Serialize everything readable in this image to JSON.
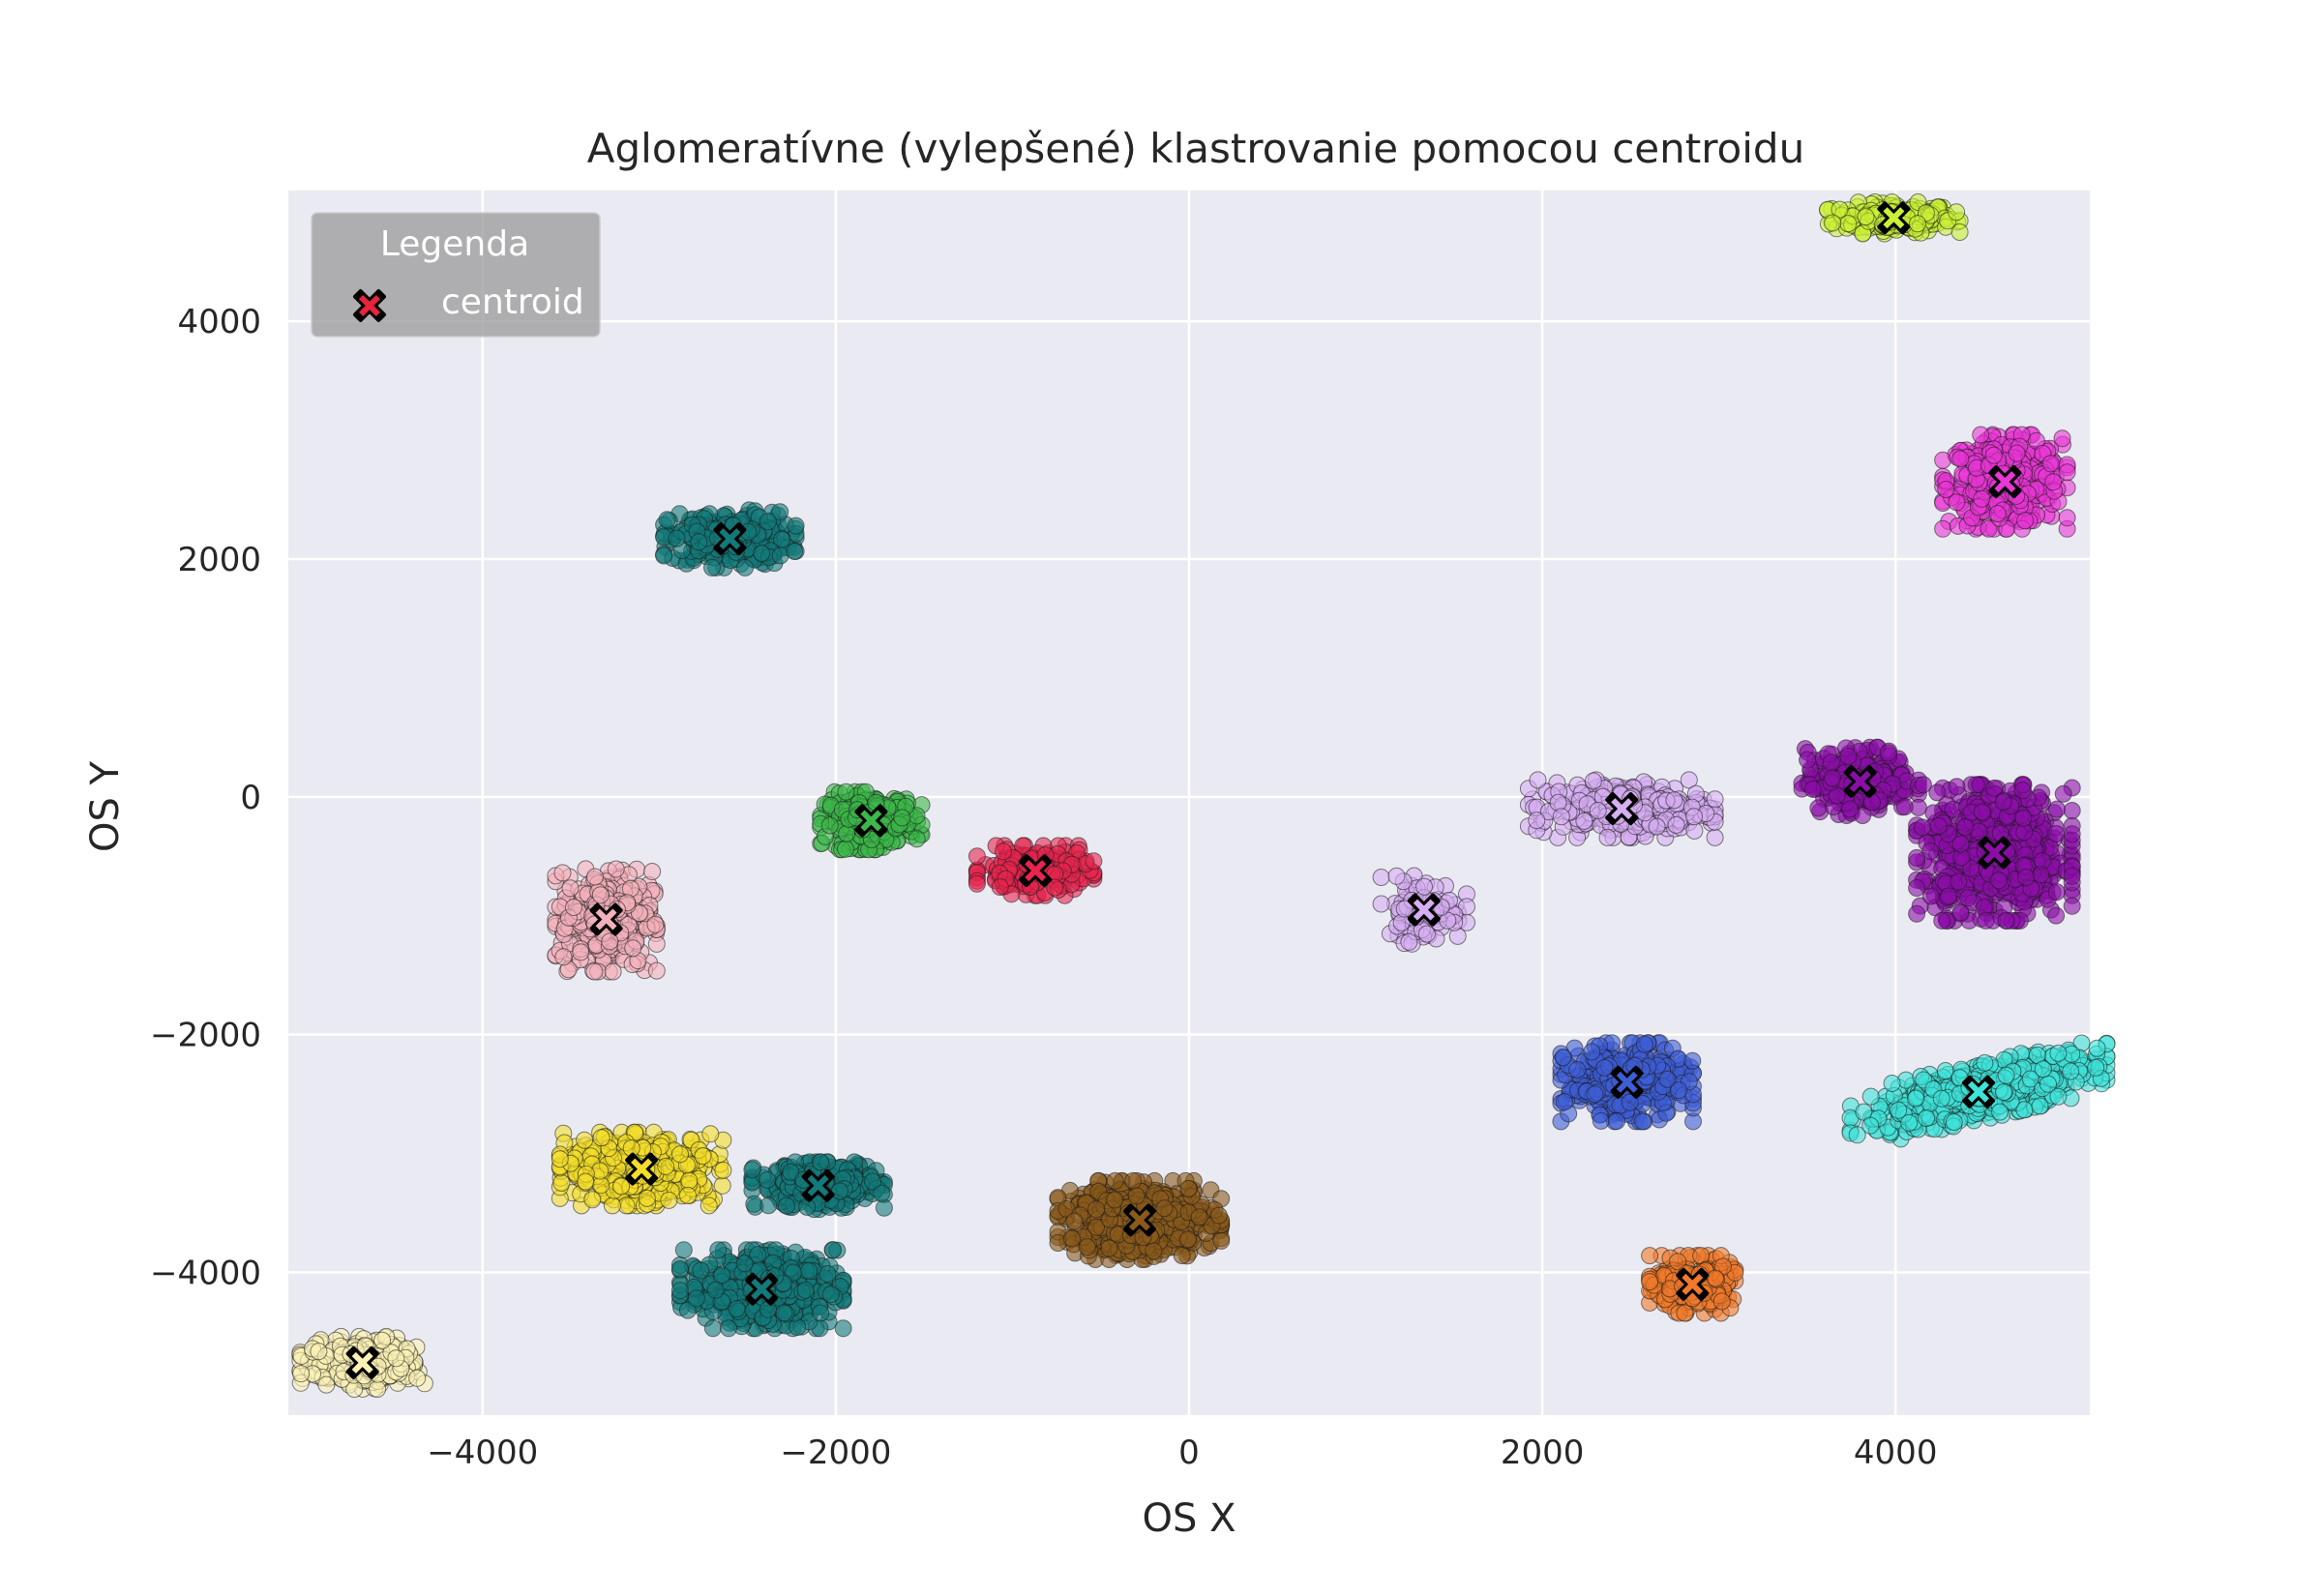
{
  "chart_data": {
    "type": "scatter",
    "title": "Aglomeratívne (vylepšené) klastrovanie pomocou centroidu",
    "xlabel": "OS X",
    "ylabel": "OS Y",
    "xlim": [
      -5100,
      5100
    ],
    "ylim": [
      -5200,
      5100
    ],
    "xticks": [
      -4000,
      -2000,
      0,
      2000,
      4000
    ],
    "yticks": [
      4000,
      2000,
      0,
      -2000,
      -4000
    ],
    "xtick_labels": [
      "−4000",
      "−2000",
      "0",
      "2000",
      "4000"
    ],
    "ytick_labels": [
      "4000",
      "2000",
      "0",
      "−2000",
      "−4000"
    ],
    "grid": true,
    "legend": {
      "title": "Legenda",
      "placement": "upper-left",
      "entries": [
        {
          "label": "centroid",
          "marker_color": "#e8243c"
        }
      ]
    },
    "clusters": [
      {
        "color": "#c9f135",
        "centroid": [
          3990,
          4870
        ],
        "sx": 170,
        "sy": 60,
        "n": 220
      },
      {
        "color": "#e936d6",
        "centroid": [
          4620,
          2650
        ],
        "sx": 160,
        "sy": 180,
        "n": 420
      },
      {
        "color": "#127a7a",
        "centroid": [
          -2600,
          2170
        ],
        "sx": 170,
        "sy": 110,
        "n": 300
      },
      {
        "color": "#3cb84a",
        "centroid": [
          -1800,
          -200
        ],
        "sx": 130,
        "sy": 110,
        "n": 260
      },
      {
        "color": "#e8244f",
        "centroid": [
          -870,
          -620
        ],
        "sx": 150,
        "sy": 95,
        "n": 220
      },
      {
        "color": "#f4b0ba",
        "centroid": [
          -3300,
          -1030
        ],
        "sx": 130,
        "sy": 200,
        "n": 380
      },
      {
        "color": "#d6aef2",
        "centroid": [
          1330,
          -950
        ],
        "sx": 110,
        "sy": 130,
        "n": 110
      },
      {
        "color": "#d6aef2",
        "centroid": [
          2450,
          -100
        ],
        "sx": 240,
        "sy": 110,
        "n": 340
      },
      {
        "color": "#8c0ea8",
        "centroid": [
          3800,
          130
        ],
        "sx": 150,
        "sy": 130,
        "n": 260
      },
      {
        "color": "#8c0ea8",
        "centroid": [
          4560,
          -470
        ],
        "sx": 200,
        "sy": 260,
        "n": 700
      },
      {
        "color": "#3d5ed6",
        "centroid": [
          2480,
          -2400
        ],
        "sx": 170,
        "sy": 150,
        "n": 400
      },
      {
        "color": "#3fe3d8",
        "centroid": [
          4470,
          -2480
        ],
        "sx": 330,
        "sy": 110,
        "n": 600,
        "tilt": 0.35
      },
      {
        "color": "#f4dd2a",
        "centroid": [
          -3100,
          -3130
        ],
        "sx": 210,
        "sy": 140,
        "n": 440
      },
      {
        "color": "#127a7a",
        "centroid": [
          -2100,
          -3270
        ],
        "sx": 170,
        "sy": 90,
        "n": 320
      },
      {
        "color": "#8b5a1a",
        "centroid": [
          -280,
          -3560
        ],
        "sx": 210,
        "sy": 150,
        "n": 620
      },
      {
        "color": "#f2792a",
        "centroid": [
          2850,
          -4100
        ],
        "sx": 110,
        "sy": 110,
        "n": 220
      },
      {
        "color": "#127a7a",
        "centroid": [
          -2420,
          -4140
        ],
        "sx": 210,
        "sy": 150,
        "n": 500
      },
      {
        "color": "#fbf1b5",
        "centroid": [
          -4680,
          -4760
        ],
        "sx": 160,
        "sy": 100,
        "n": 300
      }
    ]
  }
}
